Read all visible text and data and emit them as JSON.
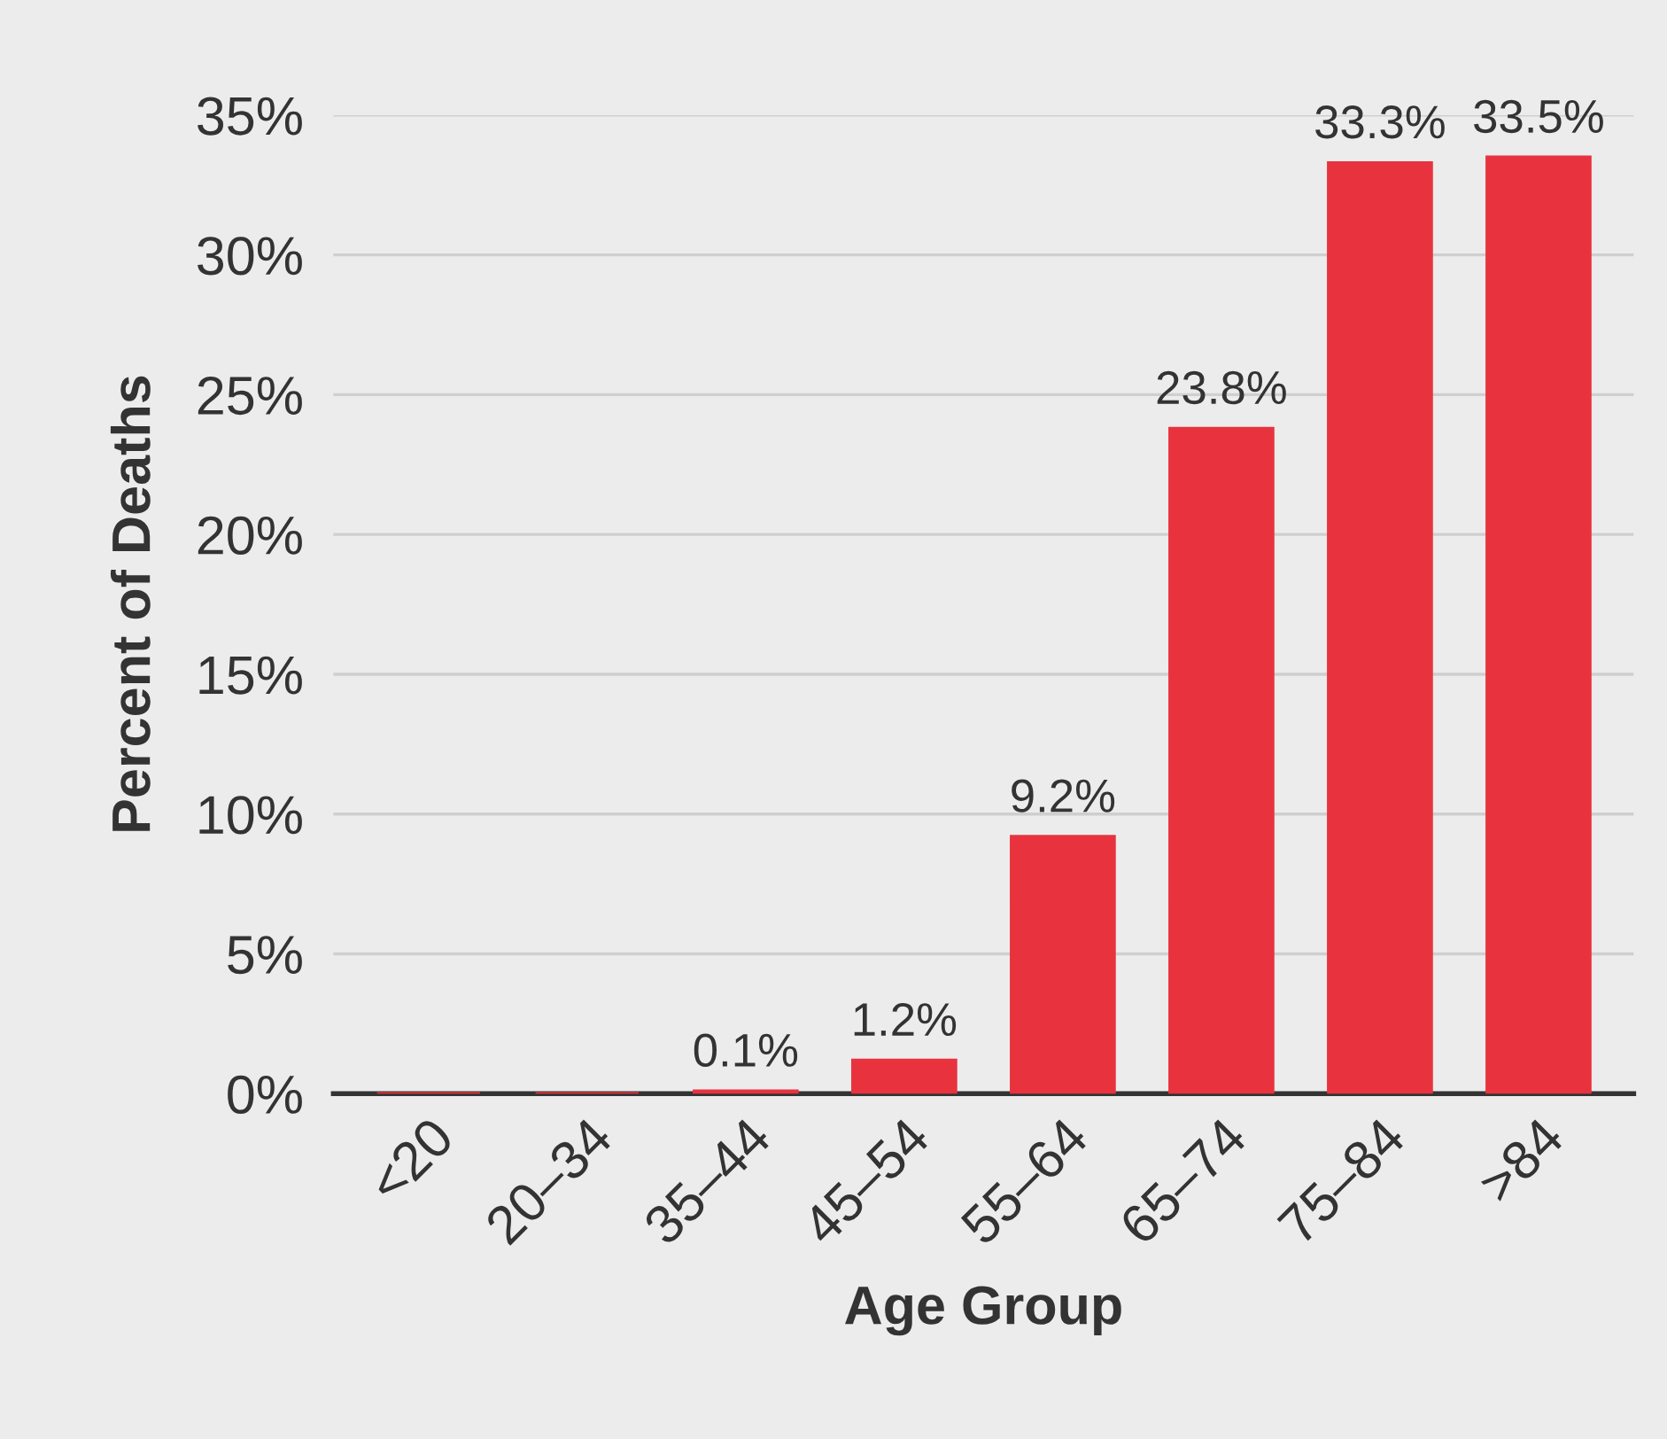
{
  "chart_data": {
    "type": "bar",
    "xlabel": "Age Group",
    "ylabel": "Percent of Deaths",
    "categories": [
      "<20",
      "20–34",
      "35–44",
      "45–54",
      "55–64",
      "65–74",
      "75–84",
      ">84"
    ],
    "values": [
      0,
      0,
      0.1,
      1.2,
      9.2,
      23.8,
      33.3,
      33.5
    ],
    "value_labels": [
      null,
      null,
      "0.1%",
      "1.2%",
      "9.2%",
      "23.8%",
      "33.3%",
      "33.5%"
    ],
    "color": "#e8333f",
    "ylim": [
      0,
      35
    ],
    "yticks": [
      {
        "value": 0,
        "label": "0%"
      },
      {
        "value": 5,
        "label": "5%"
      },
      {
        "value": 10,
        "label": "10%"
      },
      {
        "value": 15,
        "label": "15%"
      },
      {
        "value": 20,
        "label": "20%"
      },
      {
        "value": 25,
        "label": "25%"
      },
      {
        "value": 30,
        "label": "30%"
      },
      {
        "value": 35,
        "label": "35%"
      }
    ],
    "grid": "y"
  }
}
